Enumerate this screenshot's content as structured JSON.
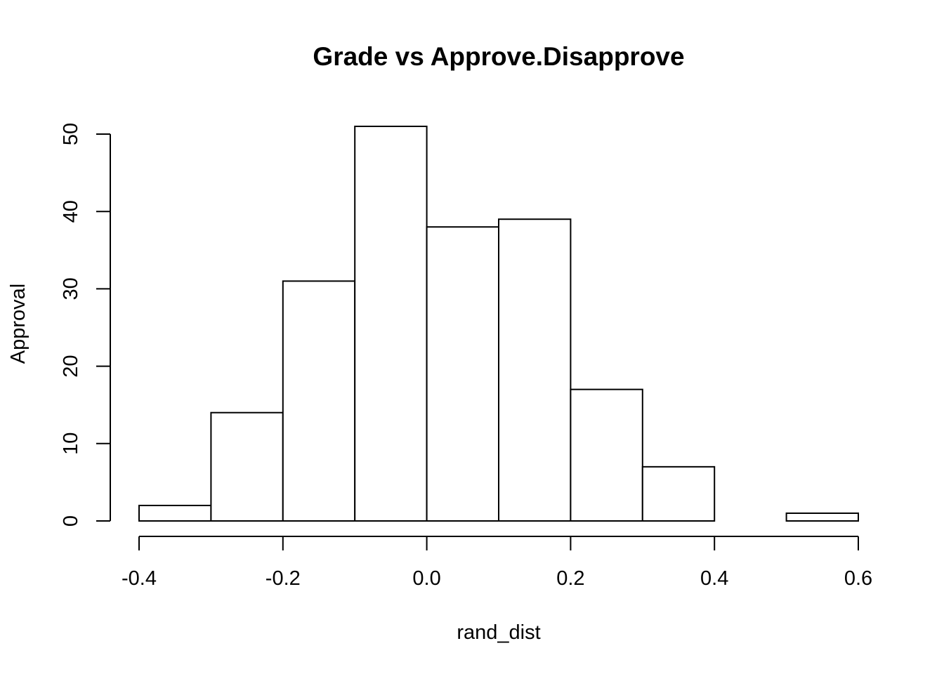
{
  "chart_data": {
    "type": "bar",
    "subtype": "histogram",
    "title": "Grade vs Approve.Disapprove",
    "xlabel": "rand_dist",
    "ylabel": "Approval",
    "bin_edges": [
      -0.4,
      -0.3,
      -0.2,
      -0.1,
      0.0,
      0.1,
      0.2,
      0.3,
      0.4,
      0.5,
      0.6
    ],
    "values": [
      2,
      14,
      31,
      51,
      38,
      39,
      17,
      7,
      0,
      1
    ],
    "xlim": [
      -0.4,
      0.6
    ],
    "ylim": [
      0,
      50
    ],
    "x_ticks": [
      -0.4,
      -0.2,
      0.0,
      0.2,
      0.4,
      0.6
    ],
    "x_tick_labels": [
      "-0.4",
      "-0.2",
      "0.0",
      "0.2",
      "0.4",
      "0.6"
    ],
    "y_ticks": [
      0,
      10,
      20,
      30,
      40,
      50
    ],
    "y_tick_labels": [
      "0",
      "10",
      "20",
      "30",
      "40",
      "50"
    ],
    "grid": false,
    "colors": {
      "bar_fill": "#ffffff",
      "bar_stroke": "#000000",
      "background": "#ffffff"
    }
  }
}
